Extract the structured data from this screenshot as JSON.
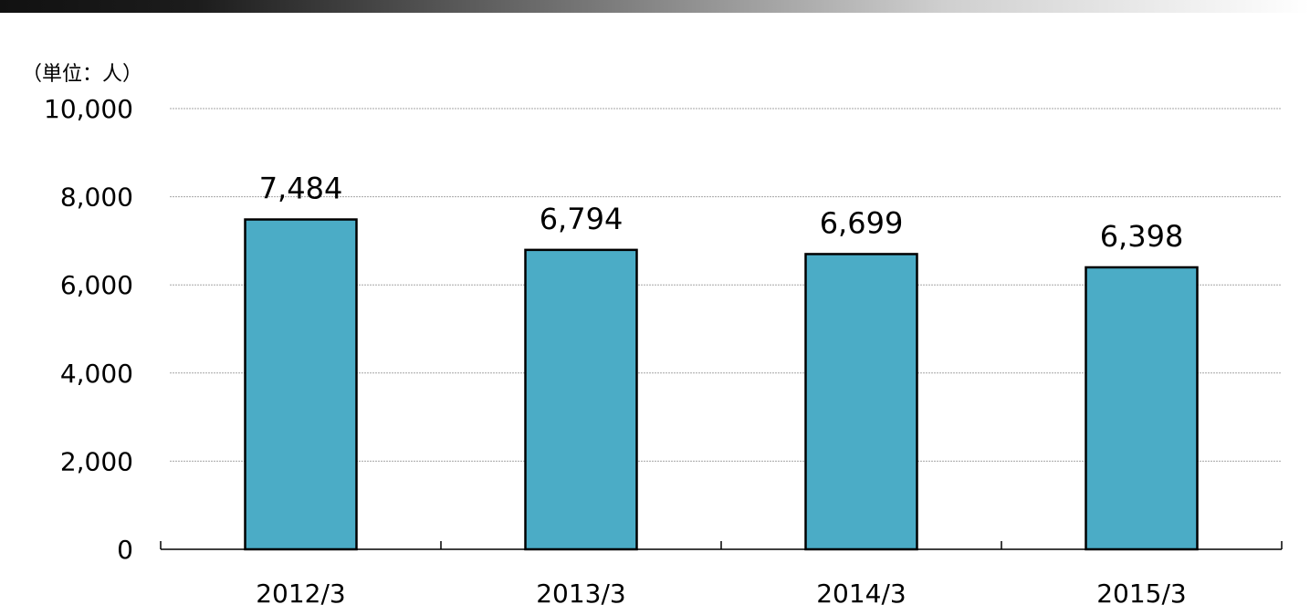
{
  "chart_data": {
    "type": "bar",
    "unit_label": "（単位：人）",
    "categories": [
      "2012/3",
      "2013/3",
      "2014/3",
      "2015/3"
    ],
    "values": [
      7484,
      6794,
      6699,
      6398
    ],
    "data_labels": [
      "7,484",
      "6,794",
      "6,699",
      "6,398"
    ],
    "ylim": [
      0,
      10000
    ],
    "yticks": [
      0,
      2000,
      4000,
      6000,
      8000,
      10000
    ],
    "ytick_labels": [
      "0",
      "2,000",
      "4,000",
      "6,000",
      "8,000",
      "10,000"
    ],
    "grid": true,
    "bar_color": "#4bacc6",
    "bar_edge_color": "#000000",
    "grid_color": "#a6a6a6"
  }
}
